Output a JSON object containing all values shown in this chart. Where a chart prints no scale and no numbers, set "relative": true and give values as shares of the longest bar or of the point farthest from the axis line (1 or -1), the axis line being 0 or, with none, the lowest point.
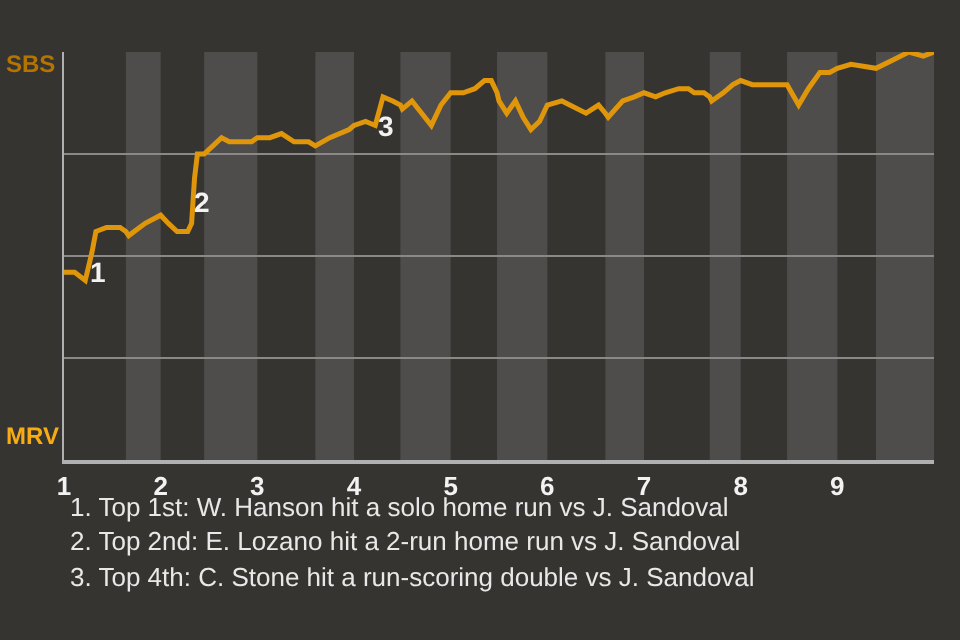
{
  "chart_data": {
    "type": "line",
    "relative": true,
    "grid": "y",
    "xlim": [
      1,
      10
    ],
    "xticks": [
      1,
      2,
      3,
      4,
      5,
      6,
      7,
      8,
      9
    ],
    "bands": [
      {
        "axis": "x",
        "from": 1.64,
        "to": 2,
        "color": "#4e4d4b"
      },
      {
        "axis": "x",
        "from": 2.45,
        "to": 3,
        "color": "#4e4d4b"
      },
      {
        "axis": "x",
        "from": 3.6,
        "to": 4,
        "color": "#4e4d4b"
      },
      {
        "axis": "x",
        "from": 4.48,
        "to": 5,
        "color": "#4e4d4b"
      },
      {
        "axis": "x",
        "from": 5.48,
        "to": 6,
        "color": "#4e4d4b"
      },
      {
        "axis": "x",
        "from": 6.6,
        "to": 7,
        "color": "#4e4d4b"
      },
      {
        "axis": "x",
        "from": 7.68,
        "to": 8,
        "color": "#4e4d4b"
      },
      {
        "axis": "x",
        "from": 8.48,
        "to": 9,
        "color": "#4e4d4b"
      },
      {
        "axis": "x",
        "from": 9.4,
        "to": 10,
        "color": "#4e4d4b"
      }
    ],
    "series": [
      {
        "color": "#e0960a",
        "x": [
          1.0,
          1.11,
          1.22,
          1.29,
          1.33,
          1.44,
          1.58,
          1.64,
          1.67,
          1.84,
          2.0,
          2.08,
          2.17,
          2.28,
          2.32,
          2.35,
          2.38,
          2.45,
          2.54,
          2.63,
          2.71,
          2.94,
          3.0,
          3.13,
          3.25,
          3.38,
          3.53,
          3.6,
          3.75,
          3.95,
          4.0,
          4.12,
          4.22,
          4.3,
          4.4,
          4.48,
          4.5,
          4.6,
          4.7,
          4.8,
          4.9,
          5.0,
          5.13,
          5.25,
          5.35,
          5.42,
          5.48,
          5.5,
          5.58,
          5.67,
          5.75,
          5.83,
          5.92,
          6.0,
          6.15,
          6.4,
          6.53,
          6.6,
          6.63,
          6.78,
          6.9,
          7.0,
          7.12,
          7.22,
          7.36,
          7.46,
          7.52,
          7.62,
          7.68,
          7.7,
          7.82,
          7.92,
          8.0,
          8.12,
          8.22,
          8.32,
          8.48,
          8.6,
          8.7,
          8.82,
          8.92,
          9.0,
          9.14,
          9.4,
          9.57,
          9.74,
          9.89,
          10.0
        ],
        "values": [
          0.46,
          0.46,
          0.44,
          0.51,
          0.56,
          0.57,
          0.57,
          0.56,
          0.55,
          0.58,
          0.6,
          0.58,
          0.56,
          0.56,
          0.58,
          0.69,
          0.75,
          0.75,
          0.77,
          0.79,
          0.78,
          0.78,
          0.79,
          0.79,
          0.8,
          0.78,
          0.78,
          0.77,
          0.79,
          0.81,
          0.82,
          0.83,
          0.82,
          0.89,
          0.88,
          0.87,
          0.86,
          0.88,
          0.85,
          0.82,
          0.87,
          0.9,
          0.9,
          0.91,
          0.93,
          0.93,
          0.9,
          0.88,
          0.85,
          0.88,
          0.84,
          0.81,
          0.83,
          0.87,
          0.88,
          0.85,
          0.87,
          0.85,
          0.84,
          0.88,
          0.89,
          0.9,
          0.89,
          0.9,
          0.91,
          0.91,
          0.9,
          0.9,
          0.89,
          0.88,
          0.9,
          0.92,
          0.93,
          0.92,
          0.92,
          0.92,
          0.92,
          0.87,
          0.91,
          0.95,
          0.95,
          0.96,
          0.97,
          0.96,
          0.98,
          1.0,
          0.99,
          1.0
        ]
      }
    ],
    "annotations": [
      "SBS",
      "MRV",
      "1. Top 1st: W. Hanson hit a solo home run vs J. Sandoval",
      "2. Top 2nd: E. Lozano hit a 2-run home run vs J. Sandoval",
      "3. Top 4th: C. Stone hit a run-scoring double vs J. Sandoval",
      {
        "text": "1",
        "x": 1.36,
        "y": 0.46
      },
      {
        "text": "2",
        "x": 2.42,
        "y": 0.63
      },
      {
        "text": "3",
        "x": 4.34,
        "y": 0.82
      }
    ]
  }
}
